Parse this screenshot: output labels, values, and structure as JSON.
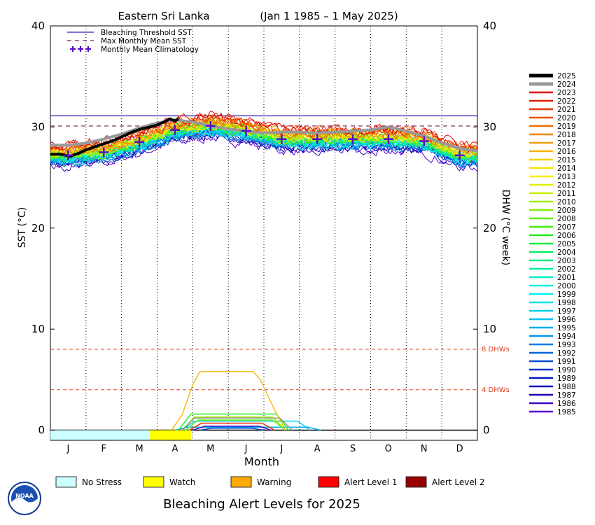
{
  "header": {
    "region": "Eastern Sri Lanka",
    "period": "(Jan 1 1985 – 1 May 2025)"
  },
  "chart_data": {
    "type": "line",
    "x_label": "Month",
    "y_left_label": "SST (°C)",
    "y_right_label": "DHW (°C week)",
    "y_range": [
      -1,
      40
    ],
    "y_ticks": [
      "0",
      "10",
      "20",
      "30",
      "40"
    ],
    "right_ticks": [
      "0",
      "10",
      "20",
      "30",
      "40"
    ],
    "x_categories": [
      "J",
      "F",
      "M",
      "A",
      "M",
      "J",
      "J",
      "A",
      "S",
      "O",
      "N",
      "D"
    ],
    "bleaching_threshold_sst": 31.1,
    "max_monthly_mean_sst": 30.1,
    "climatology": [
      27.2,
      27.5,
      28.5,
      29.7,
      30.1,
      29.6,
      28.8,
      28.8,
      28.8,
      28.8,
      28.6,
      27.2
    ],
    "dhw_reference_lines": [
      {
        "value": 8,
        "label": "8 DHWs"
      },
      {
        "value": 4,
        "label": "4 DHWs"
      }
    ],
    "legend": [
      {
        "label": "Bleaching Threshold SST"
      },
      {
        "label": "Max Monthly Mean SST"
      },
      {
        "label": "Monthly Mean Climatology"
      }
    ],
    "years": [
      "2025",
      "2024",
      "2023",
      "2022",
      "2021",
      "2020",
      "2019",
      "2018",
      "2017",
      "2016",
      "2015",
      "2014",
      "2013",
      "2012",
      "2011",
      "2010",
      "2009",
      "2008",
      "2007",
      "2006",
      "2005",
      "2004",
      "2003",
      "2002",
      "2001",
      "2000",
      "1999",
      "1998",
      "1997",
      "1996",
      "1995",
      "1994",
      "1993",
      "1992",
      "1991",
      "1990",
      "1989",
      "1988",
      "1987",
      "1986",
      "1985"
    ],
    "year_colors": [
      "#000000",
      "#999999",
      "#e00000",
      "#e41a00",
      "#e83400",
      "#ec5000",
      "#f06c00",
      "#f28400",
      "#f49c00",
      "#f6b400",
      "#f8d000",
      "#f8e000",
      "#f8f000",
      "#e0f000",
      "#c0f000",
      "#a0f000",
      "#7ef000",
      "#5cf000",
      "#3cf000",
      "#20f020",
      "#10f040",
      "#00f060",
      "#00f080",
      "#00f0a0",
      "#00f0c0",
      "#00f0d8",
      "#00f0f0",
      "#00e0f0",
      "#00d0f0",
      "#00c0f0",
      "#00b0f0",
      "#0096e8",
      "#007ce0",
      "#0064d8",
      "#004cd0",
      "#0034c8",
      "#001cc0",
      "#0010b8",
      "#2000b8",
      "#3c00c0",
      "#5a00d0"
    ],
    "series_2025_sst": [
      {
        "m": 0.0,
        "v": 27.3
      },
      {
        "m": 0.3,
        "v": 27.3
      },
      {
        "m": 0.55,
        "v": 27.1
      },
      {
        "m": 0.8,
        "v": 27.4
      },
      {
        "m": 1.05,
        "v": 27.8
      },
      {
        "m": 1.3,
        "v": 28.1
      },
      {
        "m": 1.55,
        "v": 28.4
      },
      {
        "m": 1.8,
        "v": 28.7
      },
      {
        "m": 2.05,
        "v": 29.1
      },
      {
        "m": 2.3,
        "v": 29.5
      },
      {
        "m": 2.55,
        "v": 29.8
      },
      {
        "m": 2.8,
        "v": 30.0
      },
      {
        "m": 3.0,
        "v": 30.2
      },
      {
        "m": 3.2,
        "v": 30.5
      },
      {
        "m": 3.35,
        "v": 30.8
      },
      {
        "m": 3.5,
        "v": 30.6
      },
      {
        "m": 3.6,
        "v": 30.8
      }
    ],
    "series_2024_sst": [
      {
        "m": 0.0,
        "v": 28.2
      },
      {
        "m": 0.5,
        "v": 28.2
      },
      {
        "m": 1.0,
        "v": 28.4
      },
      {
        "m": 1.5,
        "v": 28.8
      },
      {
        "m": 2.0,
        "v": 29.3
      },
      {
        "m": 2.5,
        "v": 29.9
      },
      {
        "m": 3.0,
        "v": 30.4
      },
      {
        "m": 3.5,
        "v": 30.7
      },
      {
        "m": 4.0,
        "v": 30.5
      },
      {
        "m": 4.5,
        "v": 30.1
      },
      {
        "m": 5.0,
        "v": 29.8
      },
      {
        "m": 5.5,
        "v": 29.6
      },
      {
        "m": 6.0,
        "v": 29.4
      },
      {
        "m": 6.5,
        "v": 29.5
      },
      {
        "m": 7.0,
        "v": 29.5
      },
      {
        "m": 7.5,
        "v": 29.4
      },
      {
        "m": 8.0,
        "v": 29.5
      },
      {
        "m": 8.5,
        "v": 29.6
      },
      {
        "m": 9.0,
        "v": 29.7
      },
      {
        "m": 9.5,
        "v": 30.0
      },
      {
        "m": 10.0,
        "v": 29.6
      },
      {
        "m": 10.5,
        "v": 29.1
      },
      {
        "m": 11.0,
        "v": 28.4
      },
      {
        "m": 11.5,
        "v": 27.9
      },
      {
        "m": 12.0,
        "v": 27.6
      }
    ],
    "series_2016_dhw": [
      {
        "m": 3.4,
        "v": 0
      },
      {
        "m": 3.7,
        "v": 1.5
      },
      {
        "m": 4.0,
        "v": 4.5
      },
      {
        "m": 4.2,
        "v": 5.8
      },
      {
        "m": 5.7,
        "v": 5.8
      },
      {
        "m": 5.9,
        "v": 5.0
      },
      {
        "m": 6.3,
        "v": 2.0
      },
      {
        "m": 6.6,
        "v": 0
      }
    ]
  },
  "alert_legend": {
    "items": [
      {
        "label": "No Stress",
        "color": "#ccffff"
      },
      {
        "label": "Watch",
        "color": "#ffff00"
      },
      {
        "label": "Warning",
        "color": "#ffaa00"
      },
      {
        "label": "Alert Level 1",
        "color": "#ff0000"
      },
      {
        "label": "Alert Level 2",
        "color": "#990000"
      }
    ],
    "title": "Bleaching Alert Levels for 2025",
    "bar_segments": [
      {
        "level": "No Stress",
        "from_month": 0,
        "to_month": 2.8
      },
      {
        "level": "Watch",
        "from_month": 2.8,
        "to_month": 3.95
      }
    ]
  },
  "logo": {
    "text": "NOAA"
  }
}
